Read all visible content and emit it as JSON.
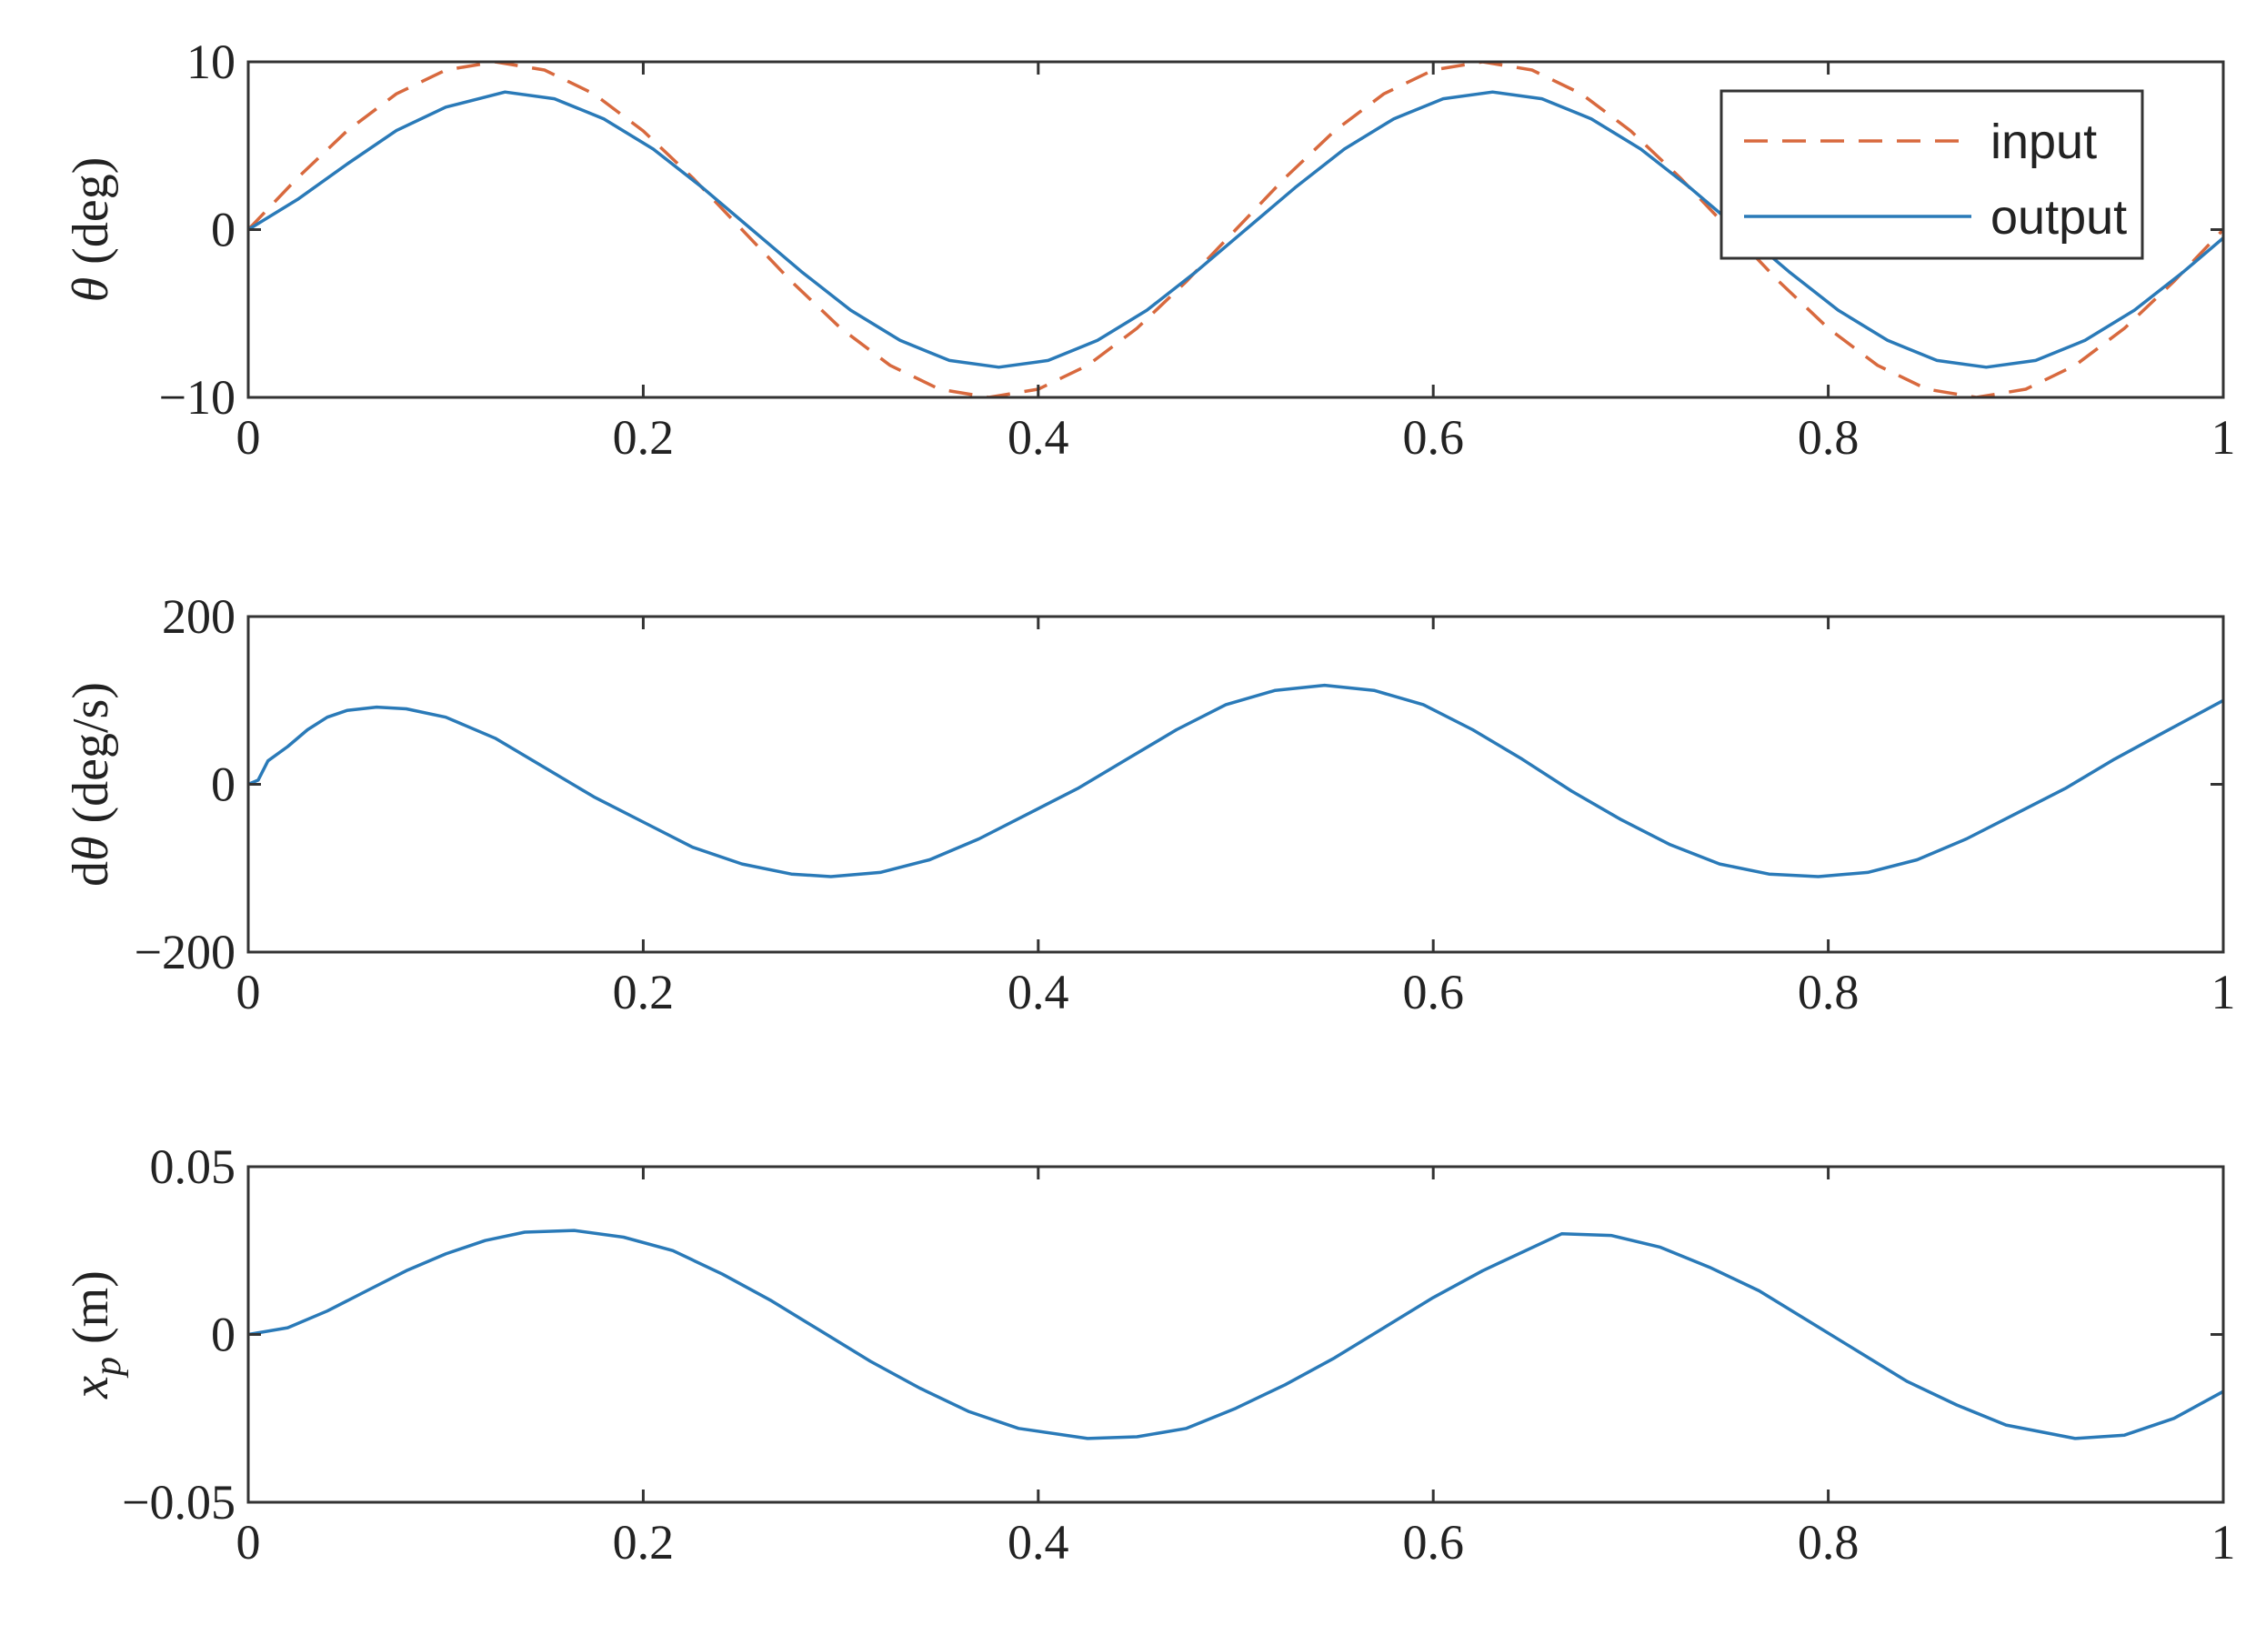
{
  "colors": {
    "output": "#2a7ab8",
    "input": "#d8693e",
    "axes": "#333333"
  },
  "legend": {
    "placement": "top-right",
    "input_label": "input",
    "output_label": "output"
  },
  "chart_data": [
    {
      "type": "line",
      "panel": "theta",
      "ylabel": {
        "sym": "θ",
        "rest": " (deg)"
      },
      "xlim": [
        0,
        1
      ],
      "ylim": [
        -10,
        10
      ],
      "xticks": [
        "0",
        "0.2",
        "0.4",
        "0.6",
        "0.8",
        "1"
      ],
      "yticks": [
        {
          "v": 10,
          "label": "10"
        },
        {
          "v": 0,
          "label": "0"
        },
        {
          "v": -10,
          "label": "−10"
        }
      ],
      "grid": false,
      "series": [
        {
          "name": "input",
          "style": "dashed",
          "x": [
            0,
            0.025,
            0.05,
            0.075,
            0.1,
            0.125,
            0.15,
            0.175,
            0.2,
            0.225,
            0.25,
            0.275,
            0.3,
            0.325,
            0.35,
            0.375,
            0.4,
            0.425,
            0.45,
            0.475,
            0.5,
            0.525,
            0.55,
            0.575,
            0.6,
            0.625,
            0.65,
            0.675,
            0.7,
            0.725,
            0.75,
            0.775,
            0.8,
            0.825,
            0.85,
            0.875,
            0.9,
            0.925,
            0.95,
            0.975,
            1
          ],
          "y": [
            0,
            3.09,
            5.88,
            8.09,
            9.51,
            10,
            9.51,
            8.09,
            5.88,
            3.09,
            0,
            -3.09,
            -5.88,
            -8.09,
            -9.51,
            -10,
            -9.51,
            -8.09,
            -5.88,
            -3.09,
            0,
            3.09,
            5.88,
            8.09,
            9.51,
            10,
            9.51,
            8.09,
            5.88,
            3.09,
            0,
            -3.09,
            -5.88,
            -8.09,
            -9.51,
            -10,
            -9.51,
            -8.09,
            -5.88,
            -3.09,
            0
          ]
        },
        {
          "name": "output",
          "style": "solid",
          "x": [
            0,
            0.025,
            0.05,
            0.075,
            0.1,
            0.13,
            0.155,
            0.18,
            0.205,
            0.23,
            0.255,
            0.28,
            0.305,
            0.33,
            0.355,
            0.38,
            0.405,
            0.43,
            0.455,
            0.48,
            0.505,
            0.53,
            0.555,
            0.58,
            0.605,
            0.63,
            0.655,
            0.68,
            0.705,
            0.73,
            0.755,
            0.78,
            0.805,
            0.83,
            0.855,
            0.88,
            0.905,
            0.93,
            0.955,
            0.98,
            1
          ],
          "y": [
            0,
            1.8,
            3.9,
            5.9,
            7.3,
            8.2,
            7.8,
            6.6,
            4.8,
            2.5,
            0,
            -2.5,
            -4.8,
            -6.6,
            -7.8,
            -8.2,
            -7.8,
            -6.6,
            -4.8,
            -2.5,
            0,
            2.5,
            4.8,
            6.6,
            7.8,
            8.2,
            7.8,
            6.6,
            4.8,
            2.5,
            0,
            -2.5,
            -4.8,
            -6.6,
            -7.8,
            -8.2,
            -7.8,
            -6.6,
            -4.8,
            -2.5,
            -0.5
          ]
        }
      ]
    },
    {
      "type": "line",
      "panel": "dtheta",
      "ylabel": {
        "pre": "d",
        "sym": "θ",
        "rest": " (deg/s)"
      },
      "xlim": [
        0,
        1
      ],
      "ylim": [
        -200,
        200
      ],
      "xticks": [
        "0",
        "0.2",
        "0.4",
        "0.6",
        "0.8",
        "1"
      ],
      "yticks": [
        {
          "v": 200,
          "label": "200"
        },
        {
          "v": 0,
          "label": "0"
        },
        {
          "v": -200,
          "label": "−200"
        }
      ],
      "grid": false,
      "series": [
        {
          "style": "solid",
          "x": [
            0,
            0.005,
            0.01,
            0.02,
            0.03,
            0.04,
            0.05,
            0.065,
            0.08,
            0.1,
            0.125,
            0.15,
            0.175,
            0.2,
            0.225,
            0.25,
            0.275,
            0.295,
            0.32,
            0.345,
            0.37,
            0.395,
            0.42,
            0.445,
            0.47,
            0.495,
            0.52,
            0.545,
            0.57,
            0.595,
            0.62,
            0.645,
            0.67,
            0.695,
            0.72,
            0.745,
            0.77,
            0.795,
            0.82,
            0.845,
            0.87,
            0.895,
            0.92,
            0.945,
            0.97,
            1
          ],
          "y": [
            0,
            5,
            28,
            45,
            65,
            80,
            88,
            92,
            90,
            80,
            55,
            20,
            -15,
            -45,
            -75,
            -95,
            -107,
            -110,
            -105,
            -90,
            -65,
            -35,
            -5,
            30,
            65,
            95,
            112,
            118,
            112,
            95,
            65,
            30,
            -8,
            -42,
            -72,
            -95,
            -107,
            -110,
            -105,
            -90,
            -65,
            -35,
            -5,
            30,
            62,
            100
          ]
        }
      ]
    },
    {
      "type": "line",
      "panel": "xp",
      "ylabel": {
        "sym": "x",
        "sub": "p",
        "rest": " (m)"
      },
      "xlim": [
        0,
        1
      ],
      "ylim": [
        -0.05,
        0.05
      ],
      "xticks": [
        "0",
        "0.2",
        "0.4",
        "0.6",
        "0.8",
        "1"
      ],
      "yticks": [
        {
          "v": 0.05,
          "label": "0.05"
        },
        {
          "v": 0,
          "label": "0"
        },
        {
          "v": -0.05,
          "label": "−0.05"
        }
      ],
      "grid": false,
      "series": [
        {
          "style": "solid",
          "x": [
            0,
            0.02,
            0.04,
            0.06,
            0.08,
            0.1,
            0.12,
            0.14,
            0.165,
            0.19,
            0.215,
            0.24,
            0.265,
            0.29,
            0.315,
            0.34,
            0.365,
            0.39,
            0.425,
            0.45,
            0.475,
            0.5,
            0.525,
            0.55,
            0.575,
            0.6,
            0.625,
            0.665,
            0.69,
            0.715,
            0.74,
            0.765,
            0.79,
            0.815,
            0.84,
            0.865,
            0.89,
            0.925,
            0.95,
            0.975,
            1
          ],
          "y": [
            0,
            0.002,
            0.007,
            0.013,
            0.019,
            0.024,
            0.028,
            0.0305,
            0.031,
            0.029,
            0.025,
            0.018,
            0.01,
            0.001,
            -0.008,
            -0.016,
            -0.023,
            -0.028,
            -0.031,
            -0.0305,
            -0.028,
            -0.022,
            -0.015,
            -0.007,
            0.002,
            0.011,
            0.019,
            0.03,
            0.0295,
            0.026,
            0.02,
            0.013,
            0.004,
            -0.005,
            -0.014,
            -0.021,
            -0.027,
            -0.031,
            -0.03,
            -0.025,
            -0.017
          ]
        }
      ]
    }
  ]
}
